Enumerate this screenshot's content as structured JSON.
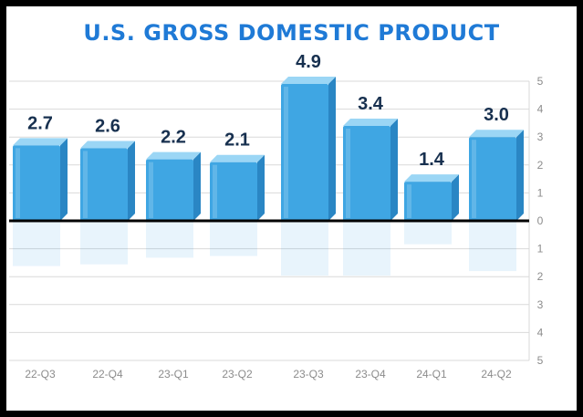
{
  "chart_data": {
    "type": "bar",
    "title": "U.S. GROSS DOMESTIC PRODUCT",
    "categories": [
      "22-Q3",
      "22-Q4",
      "23-Q1",
      "23-Q2",
      "23-Q3",
      "23-Q4",
      "24-Q1",
      "24-Q2"
    ],
    "series": [
      {
        "values": [
          2.7,
          2.6,
          2.2,
          2.1,
          4.9,
          3.4,
          1.4,
          3.0
        ]
      }
    ],
    "value_labels": [
      "2.7",
      "2.6",
      "2.2",
      "2.1",
      "4.9",
      "3.4",
      "1.4",
      "3.0"
    ],
    "ylim": [
      -5,
      5
    ],
    "y_ticks": [
      5,
      4,
      3,
      2,
      1,
      0,
      -1,
      -2,
      -3,
      -4,
      -5
    ],
    "y_tick_labels": [
      "5",
      "4",
      "3",
      "2",
      "1",
      "0",
      "1",
      "2",
      "3",
      "4",
      "5"
    ],
    "y_axis_side": "right",
    "grid": true,
    "colors": {
      "bar_front": "#3fa6e3",
      "bar_top": "#9bd6f5",
      "bar_side": "#2a86c4",
      "title": "#1f7ad6",
      "value_label": "#17304f",
      "grid": "#d9d9d9",
      "tick_label": "#8c8c8c",
      "zero_line": "#000000"
    }
  }
}
